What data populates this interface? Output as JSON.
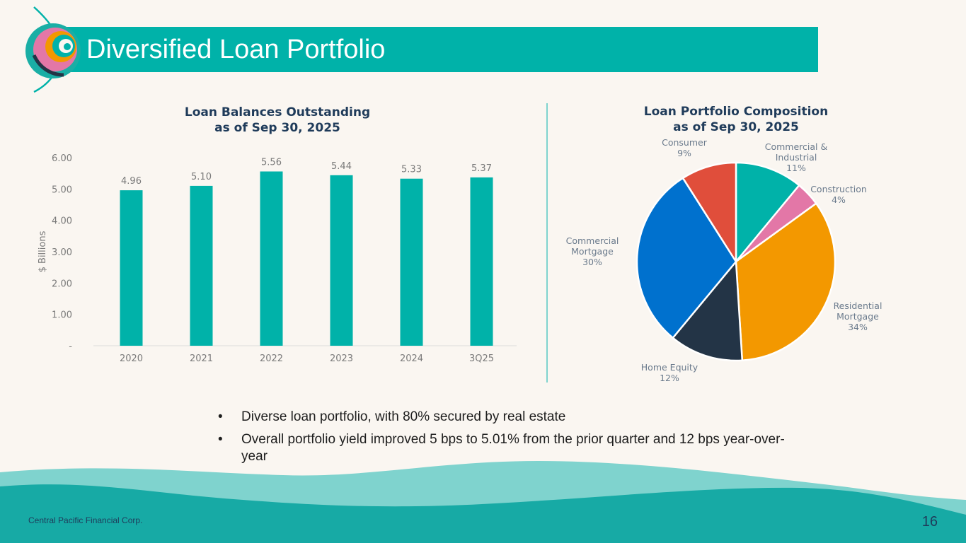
{
  "slide": {
    "title": "Diversified Loan Portfolio",
    "footer": "Central Pacific Financial Corp.",
    "page_number": "16",
    "bullet_marker": "•",
    "bullets": [
      "Diverse loan portfolio, with 80% secured by real estate",
      "Overall portfolio yield improved 5 bps to 5.01% from the prior quarter and 12 bps year-over-year"
    ],
    "colors": {
      "teal": "#00b2a9",
      "wave_light": "#7fd3ce",
      "wave_dark": "#17aaa5",
      "background": "#faf6f1",
      "navy": "#1f3b5a"
    }
  },
  "chart_data": [
    {
      "type": "bar",
      "title_lines": [
        "Loan Balances Outstanding",
        "as of Sep 30, 2025"
      ],
      "categories": [
        "2020",
        "2021",
        "2022",
        "2023",
        "2024",
        "3Q25"
      ],
      "values": [
        4.96,
        5.1,
        5.56,
        5.44,
        5.33,
        5.37
      ],
      "data_labels": [
        "4.96",
        "5.10",
        "5.56",
        "5.44",
        "5.33",
        "5.37"
      ],
      "ylabel": "$ Billions",
      "ylim": [
        0,
        6
      ],
      "yticks": [
        0,
        1,
        2,
        3,
        4,
        5,
        6
      ],
      "ytick_labels": [
        "-",
        "1.00",
        "2.00",
        "3.00",
        "4.00",
        "5.00",
        "6.00"
      ],
      "color": "#00b2a9",
      "grid": false
    },
    {
      "type": "pie",
      "title_lines": [
        "Loan Portfolio Composition",
        "as of Sep 30, 2025"
      ],
      "slices": [
        {
          "label_lines": [
            "Commercial &",
            "Industrial"
          ],
          "pct_label": "11%",
          "value": 11,
          "color": "#00b2a9"
        },
        {
          "label_lines": [
            "Construction"
          ],
          "pct_label": "4%",
          "value": 4,
          "color": "#e377a7"
        },
        {
          "label_lines": [
            "Residential",
            "Mortgage"
          ],
          "pct_label": "34%",
          "value": 34,
          "color": "#f39800"
        },
        {
          "label_lines": [
            "Home Equity"
          ],
          "pct_label": "12%",
          "value": 12,
          "color": "#233446"
        },
        {
          "label_lines": [
            "Commercial",
            "Mortgage"
          ],
          "pct_label": "30%",
          "value": 30,
          "color": "#0071ce"
        },
        {
          "label_lines": [
            "Consumer"
          ],
          "pct_label": "9%",
          "value": 9,
          "color": "#e04e3b"
        }
      ]
    }
  ]
}
